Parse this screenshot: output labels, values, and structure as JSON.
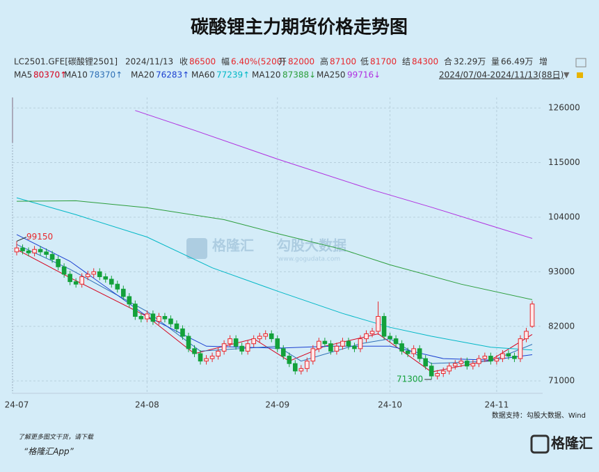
{
  "chart_data": {
    "type": "candlestick",
    "title": "碳酸锂主力期货价格走势图",
    "symbol": "LC2501.GFE[碳酸锂2501]",
    "date": "2024/11/13",
    "quote": [
      {
        "label": "收",
        "value": "86500"
      },
      {
        "label": "幅",
        "value": "6.40%(5200)"
      },
      {
        "label": "开",
        "value": "82000"
      },
      {
        "label": "高",
        "value": "87100"
      },
      {
        "label": "低",
        "value": "81700"
      },
      {
        "label": "结",
        "value": "84300"
      },
      {
        "label": "合",
        "value": "32.29万"
      },
      {
        "label": "量",
        "value": "66.49万"
      },
      {
        "label": "增",
        "value": null
      }
    ],
    "range": "2024/07/04-2024/11/13(88日)",
    "source": "数据支持：勾股大数据、Wind",
    "footer": [
      "了解更多图文干货，请下载",
      "“格隆汇App”"
    ],
    "watermark": [
      "格隆汇",
      "勾股大数据",
      "www.gogudata.com"
    ],
    "logo": "格隆汇",
    "up_color": "#e8262b",
    "down_color": "#13a13a",
    "xlim": [
      0,
      87
    ],
    "xticks": [
      {
        "value": 0,
        "label": "24-07"
      },
      {
        "value": 22,
        "label": "24-08"
      },
      {
        "value": 44,
        "label": "24-09"
      },
      {
        "value": 63,
        "label": "24-10"
      },
      {
        "value": 81,
        "label": "24-11"
      }
    ],
    "ylim": [
      68500,
      127000
    ],
    "yticks": [
      71000,
      82000,
      93000,
      104000,
      115000,
      126000
    ],
    "grid": true,
    "candles": {
      "open": [
        97000,
        97800,
        97200,
        96800,
        97500,
        97000,
        96500,
        95500,
        94000,
        92500,
        91000,
        90500,
        92000,
        92500,
        93000,
        92000,
        91500,
        90500,
        89500,
        88000,
        86500,
        84000,
        83500,
        84500,
        83000,
        84000,
        83500,
        82500,
        81500,
        80000,
        77500,
        76500,
        75000,
        75500,
        76000,
        77000,
        78500,
        79500,
        78000,
        77000,
        78500,
        79500,
        80000,
        80500,
        79500,
        77500,
        76000,
        74500,
        73000,
        73500,
        75000,
        77500,
        79000,
        78500,
        77000,
        78000,
        79000,
        78000,
        77500,
        79500,
        80500,
        81000,
        84000,
        80000,
        79500,
        78500,
        77000,
        76500,
        77500,
        75500,
        74000,
        72000,
        72500,
        73000,
        74000,
        74500,
        75000,
        74000,
        74500,
        75500,
        76000,
        75000,
        75500,
        76500,
        76000,
        75500,
        79500,
        82000
      ],
      "high": [
        99150,
        98500,
        97900,
        98200,
        98200,
        97700,
        97200,
        96200,
        94700,
        93200,
        91700,
        92700,
        93200,
        93700,
        93700,
        92700,
        92200,
        91200,
        90200,
        88700,
        87200,
        84700,
        85200,
        85200,
        84700,
        84700,
        84200,
        83200,
        82200,
        80700,
        78200,
        77200,
        76200,
        76700,
        77700,
        79200,
        80200,
        80200,
        78700,
        79200,
        80200,
        80700,
        81200,
        81200,
        80200,
        78200,
        76700,
        75200,
        74200,
        75700,
        78200,
        79700,
        79700,
        79200,
        78700,
        79700,
        79700,
        78700,
        80200,
        81200,
        81700,
        87000,
        84700,
        80700,
        80200,
        79200,
        77700,
        78200,
        78200,
        76200,
        74700,
        73200,
        73700,
        74700,
        75200,
        75700,
        75700,
        75200,
        76200,
        76700,
        76700,
        76200,
        77200,
        77200,
        76700,
        80200,
        81700,
        87100
      ],
      "low": [
        96300,
        96500,
        96100,
        96100,
        96300,
        95800,
        94800,
        93300,
        91800,
        90300,
        89800,
        89800,
        91300,
        91800,
        91300,
        90800,
        89800,
        88800,
        87300,
        85800,
        83300,
        82800,
        82800,
        82300,
        82300,
        82800,
        81800,
        80800,
        79300,
        76800,
        75800,
        74300,
        74300,
        74800,
        75300,
        76300,
        77800,
        77300,
        76300,
        76300,
        77800,
        78800,
        79300,
        78800,
        76800,
        75300,
        73800,
        72300,
        72300,
        72800,
        74300,
        76800,
        77800,
        76300,
        76300,
        77300,
        77300,
        76800,
        76800,
        78800,
        79800,
        80300,
        79300,
        78800,
        77800,
        76300,
        75800,
        75800,
        74800,
        73300,
        71300,
        71300,
        71800,
        72300,
        73300,
        73800,
        73300,
        73300,
        73800,
        74800,
        74300,
        74300,
        74800,
        75300,
        74800,
        74800,
        78800,
        81700
      ],
      "close": [
        97800,
        97200,
        96800,
        97500,
        97000,
        96500,
        95500,
        94000,
        92500,
        91000,
        90500,
        92000,
        92500,
        93000,
        92000,
        91500,
        90500,
        89500,
        88000,
        86500,
        84000,
        83500,
        84500,
        83000,
        84000,
        83500,
        82500,
        81500,
        80000,
        77500,
        76500,
        75000,
        75500,
        76000,
        77000,
        78500,
        79500,
        78000,
        77000,
        78500,
        79500,
        80000,
        80500,
        79500,
        77500,
        76000,
        74500,
        73000,
        73500,
        75000,
        77500,
        79000,
        78500,
        77000,
        78000,
        79000,
        78000,
        77500,
        79500,
        80500,
        81000,
        84000,
        80000,
        79500,
        78500,
        77000,
        76500,
        77500,
        75500,
        74000,
        72000,
        72500,
        73000,
        74000,
        74500,
        75000,
        74000,
        74500,
        75500,
        76000,
        75000,
        75500,
        76500,
        76000,
        75500,
        79500,
        81000,
        86500
      ]
    },
    "series": [
      {
        "name": "MA5",
        "color": "#d6001c",
        "legend_label": "80370↑",
        "x": [
          0,
          9,
          22,
          30,
          40,
          46,
          52,
          61,
          70,
          80,
          87
        ],
        "values": [
          97500,
          91800,
          84000,
          76500,
          79500,
          75000,
          78000,
          80500,
          72800,
          75200,
          80370
        ]
      },
      {
        "name": "MA10",
        "color": "#2e6fb5",
        "legend_label": "78370↑",
        "x": [
          0,
          9,
          22,
          31,
          44,
          48,
          58,
          63,
          70,
          80,
          87
        ],
        "values": [
          98500,
          93500,
          85000,
          77000,
          78000,
          75000,
          78500,
          79500,
          74500,
          75000,
          78370
        ]
      },
      {
        "name": "MA20",
        "color": "#1a3fd0",
        "legend_label": "76283↑",
        "x": [
          0,
          9,
          22,
          32,
          44,
          53,
          63,
          72,
          80,
          87
        ],
        "values": [
          100500,
          95100,
          84000,
          78000,
          77600,
          78000,
          78000,
          75500,
          75200,
          76283
        ]
      },
      {
        "name": "MA60",
        "color": "#00b7c6",
        "legend_label": "77239↑",
        "x": [
          0,
          10,
          22,
          33,
          44,
          55,
          63,
          70,
          80,
          87
        ],
        "values": [
          107900,
          104500,
          100000,
          93800,
          89100,
          84600,
          81800,
          80000,
          77800,
          77239
        ]
      },
      {
        "name": "MA120",
        "color": "#2a9d3a",
        "legend_label": "87388↓",
        "x": [
          0,
          10,
          22,
          35,
          44,
          55,
          63,
          75,
          87
        ],
        "values": [
          107200,
          107300,
          105900,
          103500,
          100700,
          97500,
          94400,
          90500,
          87388
        ]
      },
      {
        "name": "MA250",
        "color": "#b030e0",
        "legend_label": "99716↓",
        "x": [
          20,
          30,
          44,
          60,
          70,
          80,
          87
        ],
        "values": [
          125500,
          121500,
          115700,
          109500,
          106000,
          102300,
          99716
        ]
      }
    ]
  }
}
